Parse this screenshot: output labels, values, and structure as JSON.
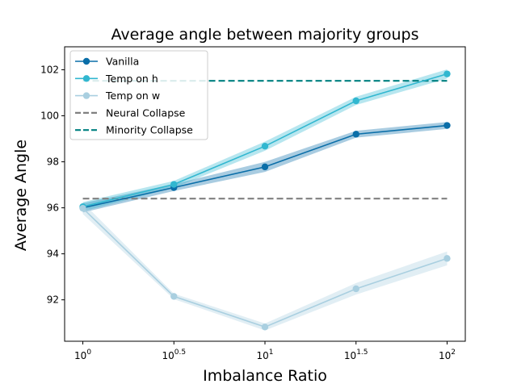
{
  "chart_data": {
    "type": "line",
    "title": "Average angle between majority groups",
    "xlabel": "Imbalance Ratio",
    "ylabel": "Average Angle",
    "x": [
      0,
      0.5,
      1,
      1.5,
      2
    ],
    "xticks": [
      {
        "base": "10",
        "exp": "0"
      },
      {
        "base": "10",
        "exp": "0.5"
      },
      {
        "base": "10",
        "exp": "1"
      },
      {
        "base": "10",
        "exp": "1.5"
      },
      {
        "base": "10",
        "exp": "2"
      }
    ],
    "xlim": [
      -0.1,
      2.1
    ],
    "ylim": [
      90.2,
      103.0
    ],
    "yticks": [
      92,
      94,
      96,
      98,
      100,
      102
    ],
    "legend_position": "upper-left",
    "series": [
      {
        "name": "Vanilla",
        "color": "#0a6ea8",
        "values": [
          96.0,
          96.88,
          97.78,
          99.2,
          99.58
        ],
        "band": [
          0.2,
          0.15,
          0.22,
          0.15,
          0.15
        ]
      },
      {
        "name": "Temp on h",
        "color": "#31b7d0",
        "values": [
          96.05,
          97.02,
          98.68,
          100.65,
          101.82
        ],
        "band": [
          0.2,
          0.15,
          0.2,
          0.18,
          0.2
        ]
      },
      {
        "name": "Temp on w",
        "color": "#a9cfe0",
        "values": [
          95.98,
          92.15,
          90.82,
          92.48,
          93.8
        ],
        "band": [
          0.25,
          0.12,
          0.15,
          0.25,
          0.3
        ]
      }
    ],
    "reference_lines": [
      {
        "name": "Neural Collapse",
        "color": "#808080",
        "y": 96.4
      },
      {
        "name": "Minority Collapse",
        "color": "#008080",
        "y": 101.52
      }
    ]
  }
}
